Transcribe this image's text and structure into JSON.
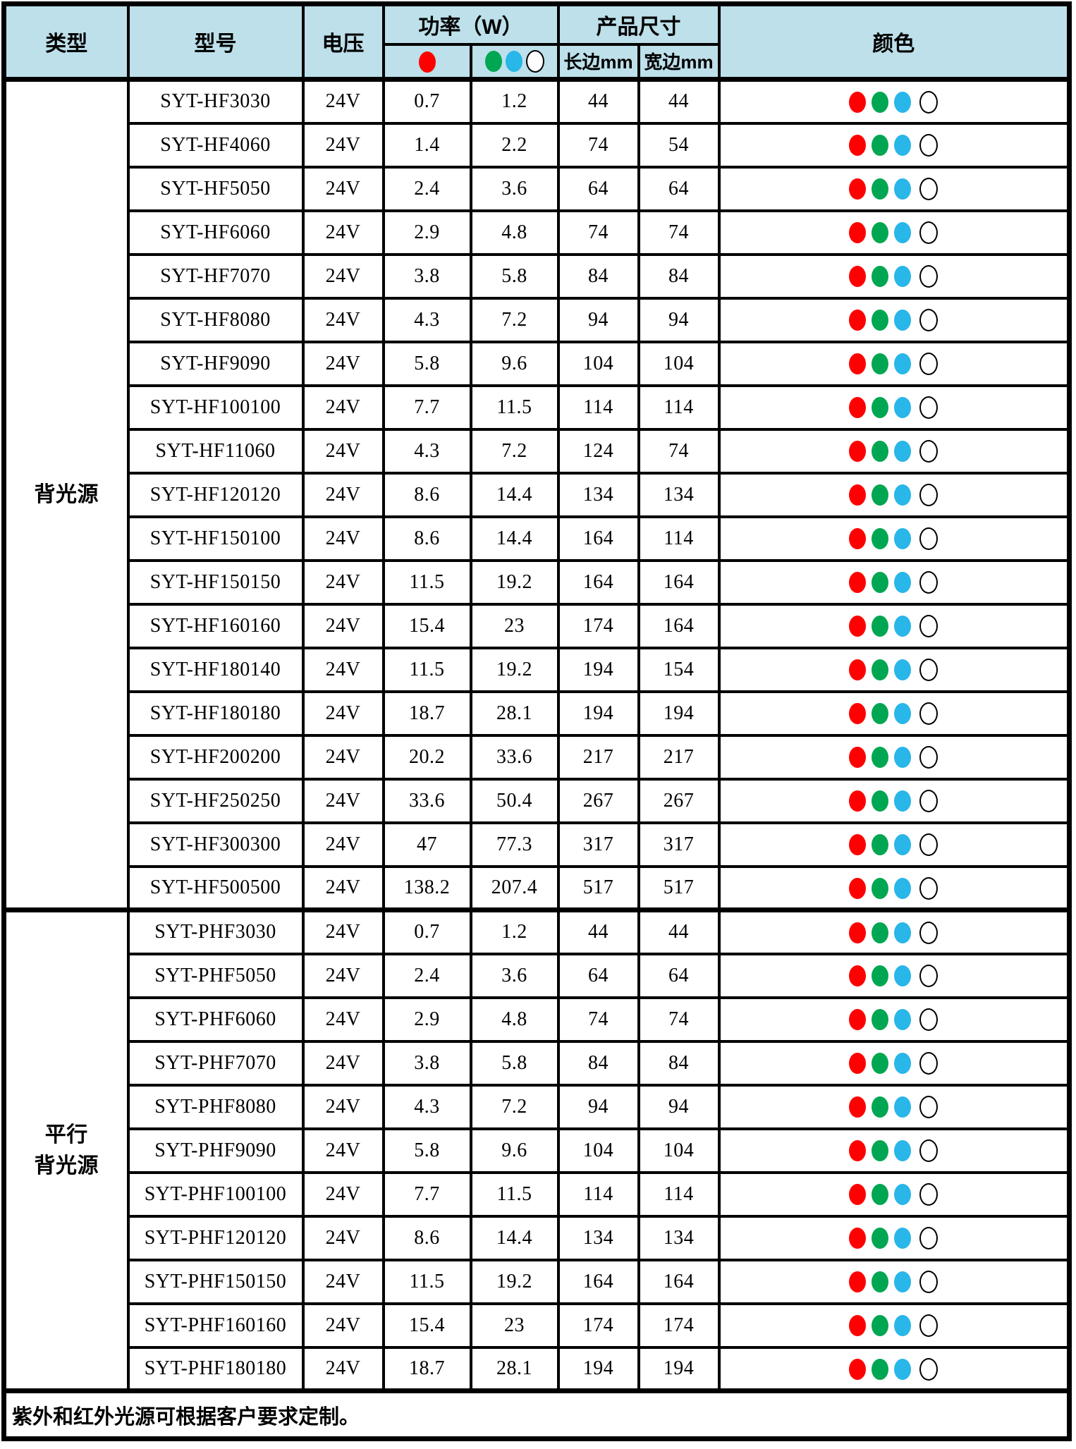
{
  "colors": {
    "red": "#ff0000",
    "green": "#00a651",
    "blue": "#29b6e8",
    "white": "#ffffff",
    "header_bg": "#bde0ea",
    "border": "#000000"
  },
  "header": {
    "col_type": "类型",
    "col_model": "型号",
    "col_voltage": "电压",
    "col_power_group": "功率（W）",
    "col_power_sub1_icon": "red-dot",
    "col_power_sub2_icons": [
      "green-dot",
      "blue-dot",
      "white-dot"
    ],
    "col_size_group": "产品尺寸",
    "col_size_long": "长边mm",
    "col_size_wide": "宽边mm",
    "col_color": "颜色"
  },
  "row_color_icons": [
    "red-dot",
    "green-dot",
    "blue-dot",
    "white-dot"
  ],
  "groups": [
    {
      "type_label": "背光源",
      "type_label_lines": [
        "背光源"
      ],
      "rows": [
        {
          "model": "SYT-HF3030",
          "voltage": "24V",
          "power_red": "0.7",
          "power_gbw": "1.2",
          "long_mm": "44",
          "wide_mm": "44"
        },
        {
          "model": "SYT-HF4060",
          "voltage": "24V",
          "power_red": "1.4",
          "power_gbw": "2.2",
          "long_mm": "74",
          "wide_mm": "54"
        },
        {
          "model": "SYT-HF5050",
          "voltage": "24V",
          "power_red": "2.4",
          "power_gbw": "3.6",
          "long_mm": "64",
          "wide_mm": "64"
        },
        {
          "model": "SYT-HF6060",
          "voltage": "24V",
          "power_red": "2.9",
          "power_gbw": "4.8",
          "long_mm": "74",
          "wide_mm": "74"
        },
        {
          "model": "SYT-HF7070",
          "voltage": "24V",
          "power_red": "3.8",
          "power_gbw": "5.8",
          "long_mm": "84",
          "wide_mm": "84"
        },
        {
          "model": "SYT-HF8080",
          "voltage": "24V",
          "power_red": "4.3",
          "power_gbw": "7.2",
          "long_mm": "94",
          "wide_mm": "94"
        },
        {
          "model": "SYT-HF9090",
          "voltage": "24V",
          "power_red": "5.8",
          "power_gbw": "9.6",
          "long_mm": "104",
          "wide_mm": "104"
        },
        {
          "model": "SYT-HF100100",
          "voltage": "24V",
          "power_red": "7.7",
          "power_gbw": "11.5",
          "long_mm": "114",
          "wide_mm": "114"
        },
        {
          "model": "SYT-HF11060",
          "voltage": "24V",
          "power_red": "4.3",
          "power_gbw": "7.2",
          "long_mm": "124",
          "wide_mm": "74"
        },
        {
          "model": "SYT-HF120120",
          "voltage": "24V",
          "power_red": "8.6",
          "power_gbw": "14.4",
          "long_mm": "134",
          "wide_mm": "134"
        },
        {
          "model": "SYT-HF150100",
          "voltage": "24V",
          "power_red": "8.6",
          "power_gbw": "14.4",
          "long_mm": "164",
          "wide_mm": "114"
        },
        {
          "model": "SYT-HF150150",
          "voltage": "24V",
          "power_red": "11.5",
          "power_gbw": "19.2",
          "long_mm": "164",
          "wide_mm": "164"
        },
        {
          "model": "SYT-HF160160",
          "voltage": "24V",
          "power_red": "15.4",
          "power_gbw": "23",
          "long_mm": "174",
          "wide_mm": "164"
        },
        {
          "model": "SYT-HF180140",
          "voltage": "24V",
          "power_red": "11.5",
          "power_gbw": "19.2",
          "long_mm": "194",
          "wide_mm": "154"
        },
        {
          "model": "SYT-HF180180",
          "voltage": "24V",
          "power_red": "18.7",
          "power_gbw": "28.1",
          "long_mm": "194",
          "wide_mm": "194"
        },
        {
          "model": "SYT-HF200200",
          "voltage": "24V",
          "power_red": "20.2",
          "power_gbw": "33.6",
          "long_mm": "217",
          "wide_mm": "217"
        },
        {
          "model": "SYT-HF250250",
          "voltage": "24V",
          "power_red": "33.6",
          "power_gbw": "50.4",
          "long_mm": "267",
          "wide_mm": "267"
        },
        {
          "model": "SYT-HF300300",
          "voltage": "24V",
          "power_red": "47",
          "power_gbw": "77.3",
          "long_mm": "317",
          "wide_mm": "317"
        },
        {
          "model": "SYT-HF500500",
          "voltage": "24V",
          "power_red": "138.2",
          "power_gbw": "207.4",
          "long_mm": "517",
          "wide_mm": "517"
        }
      ]
    },
    {
      "type_label": "平行背光源",
      "type_label_lines": [
        "平行",
        "背光源"
      ],
      "rows": [
        {
          "model": "SYT-PHF3030",
          "voltage": "24V",
          "power_red": "0.7",
          "power_gbw": "1.2",
          "long_mm": "44",
          "wide_mm": "44"
        },
        {
          "model": "SYT-PHF5050",
          "voltage": "24V",
          "power_red": "2.4",
          "power_gbw": "3.6",
          "long_mm": "64",
          "wide_mm": "64"
        },
        {
          "model": "SYT-PHF6060",
          "voltage": "24V",
          "power_red": "2.9",
          "power_gbw": "4.8",
          "long_mm": "74",
          "wide_mm": "74"
        },
        {
          "model": "SYT-PHF7070",
          "voltage": "24V",
          "power_red": "3.8",
          "power_gbw": "5.8",
          "long_mm": "84",
          "wide_mm": "84"
        },
        {
          "model": "SYT-PHF8080",
          "voltage": "24V",
          "power_red": "4.3",
          "power_gbw": "7.2",
          "long_mm": "94",
          "wide_mm": "94"
        },
        {
          "model": "SYT-PHF9090",
          "voltage": "24V",
          "power_red": "5.8",
          "power_gbw": "9.6",
          "long_mm": "104",
          "wide_mm": "104"
        },
        {
          "model": "SYT-PHF100100",
          "voltage": "24V",
          "power_red": "7.7",
          "power_gbw": "11.5",
          "long_mm": "114",
          "wide_mm": "114"
        },
        {
          "model": "SYT-PHF120120",
          "voltage": "24V",
          "power_red": "8.6",
          "power_gbw": "14.4",
          "long_mm": "134",
          "wide_mm": "134"
        },
        {
          "model": "SYT-PHF150150",
          "voltage": "24V",
          "power_red": "11.5",
          "power_gbw": "19.2",
          "long_mm": "164",
          "wide_mm": "164"
        },
        {
          "model": "SYT-PHF160160",
          "voltage": "24V",
          "power_red": "15.4",
          "power_gbw": "23",
          "long_mm": "174",
          "wide_mm": "174"
        },
        {
          "model": "SYT-PHF180180",
          "voltage": "24V",
          "power_red": "18.7",
          "power_gbw": "28.1",
          "long_mm": "194",
          "wide_mm": "194"
        }
      ]
    }
  ],
  "footer_note": "紫外和红外光源可根据客户要求定制。"
}
